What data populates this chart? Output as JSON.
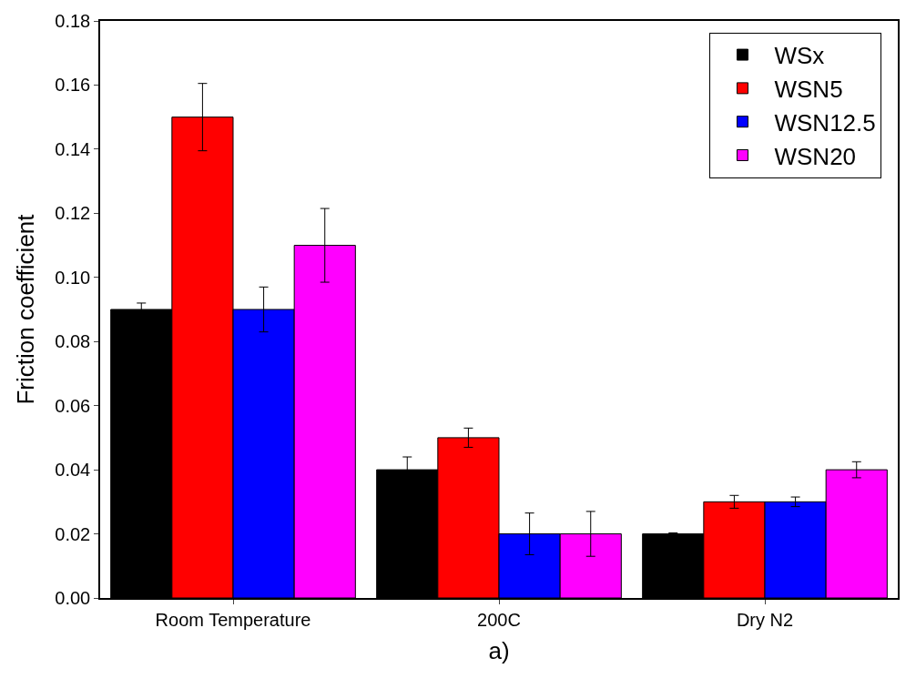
{
  "chart_data": {
    "type": "bar",
    "ylabel": "Friction coefficient",
    "xlabel": "a)",
    "categories": [
      "Room Temperature",
      "200C",
      "Dry N2"
    ],
    "series": [
      {
        "name": "WSx",
        "color": "#000000",
        "values": [
          0.09,
          0.04,
          0.02
        ],
        "errors": [
          0.002,
          0.004,
          0.0003
        ]
      },
      {
        "name": "WSN5",
        "color": "#ff0000",
        "values": [
          0.15,
          0.05,
          0.03
        ],
        "errors": [
          0.0105,
          0.003,
          0.002
        ]
      },
      {
        "name": "WSN12.5",
        "color": "#0000ff",
        "values": [
          0.09,
          0.02,
          0.03
        ],
        "errors": [
          0.007,
          0.0065,
          0.0015
        ]
      },
      {
        "name": "WSN20",
        "color": "#ff00ff",
        "values": [
          0.11,
          0.02,
          0.04
        ],
        "errors": [
          0.0115,
          0.007,
          0.0025
        ]
      }
    ],
    "ylim": [
      0,
      0.18
    ],
    "yticks": [
      {
        "value": 0,
        "label": "0.00"
      },
      0.02,
      0.04,
      0.06,
      0.08,
      {
        "value": 0.1,
        "label": "0.10"
      },
      0.12,
      0.14,
      0.16,
      0.18
    ],
    "legend": "top right"
  }
}
